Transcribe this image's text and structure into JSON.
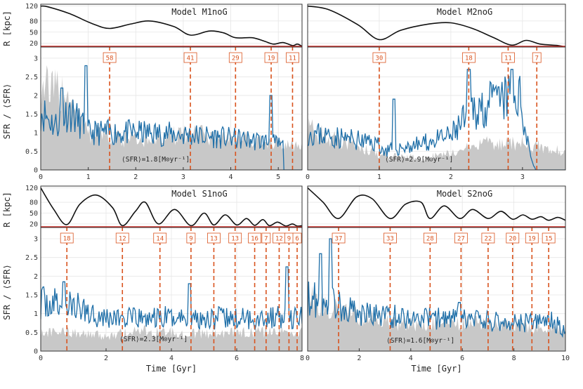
{
  "chart_data": [
    {
      "type": "line",
      "title": "Model M1noG",
      "xlabel": "",
      "ylabel_top": "R [kpc]",
      "ylabel_bottom": "SFR / ⟨SFR⟩",
      "xlim": [
        0,
        5.5
      ],
      "xticks": [
        "0",
        "1",
        "2",
        "3",
        "4",
        "5"
      ],
      "ylim_top": [
        10,
        125
      ],
      "yticks_top": [
        "120",
        "80",
        "50",
        "20"
      ],
      "ylim_bottom": [
        0,
        3.3
      ],
      "yticks_bottom": [
        "0",
        "0.5",
        "1",
        "1.5",
        "2",
        "2.5",
        "3"
      ],
      "red_line_R": 12,
      "avg_text": "⟨SFR⟩=1.8[M⊙yr⁻¹]",
      "orbit": {
        "x": [
          0,
          0.15,
          0.6,
          1.1,
          1.45,
          1.9,
          2.3,
          2.8,
          3.15,
          3.55,
          3.85,
          4.1,
          4.45,
          4.7,
          4.9,
          5.1,
          5.3,
          5.4,
          5.5
        ],
        "R": [
          120,
          118,
          100,
          72,
          60,
          72,
          80,
          65,
          42,
          53,
          48,
          35,
          35,
          26,
          18,
          22,
          14,
          18,
          12
        ]
      },
      "pericenters": [
        {
          "x": 1.45,
          "label": "58"
        },
        {
          "x": 3.15,
          "label": "41"
        },
        {
          "x": 4.1,
          "label": "29"
        },
        {
          "x": 4.85,
          "label": "19"
        },
        {
          "x": 5.3,
          "label": "11"
        }
      ],
      "sfr_seed": 11,
      "sfr_shape": [
        [
          0,
          1.6
        ],
        [
          0.3,
          1.2
        ],
        [
          0.6,
          1.6
        ],
        [
          1.0,
          1.0
        ],
        [
          2.0,
          1.0
        ],
        [
          3.0,
          0.95
        ],
        [
          4.0,
          0.85
        ],
        [
          4.8,
          0.75
        ],
        [
          5.5,
          0.5
        ]
      ],
      "sfr_spikes": [
        [
          0.45,
          2.2
        ],
        [
          0.95,
          2.8
        ],
        [
          4.85,
          2.0
        ]
      ],
      "sfr_cutoff": 5.1,
      "gray_shape": [
        [
          0,
          2.3
        ],
        [
          0.5,
          2.0
        ],
        [
          1.0,
          1.0
        ],
        [
          2.0,
          0.8
        ],
        [
          3.0,
          0.95
        ],
        [
          4.0,
          0.9
        ],
        [
          5.0,
          0.7
        ],
        [
          5.5,
          0.6
        ]
      ]
    },
    {
      "type": "line",
      "title": "Model M2noG",
      "xlabel": "",
      "xlim": [
        0,
        3.6
      ],
      "xticks": [
        "0",
        "1",
        "2",
        "3"
      ],
      "ylim_top": [
        10,
        125
      ],
      "ylim_bottom": [
        0,
        3.3
      ],
      "red_line_R": 12,
      "avg_text": "⟨SFR⟩=2.9[M⊙yr⁻¹]",
      "orbit": {
        "x": [
          0,
          0.3,
          0.7,
          1.0,
          1.3,
          1.7,
          2.0,
          2.3,
          2.6,
          2.85,
          3.05,
          3.25,
          3.5,
          3.6
        ],
        "R": [
          120,
          110,
          70,
          30,
          55,
          72,
          75,
          60,
          35,
          15,
          28,
          18,
          14,
          10
        ]
      },
      "pericenters": [
        {
          "x": 1.0,
          "label": "30"
        },
        {
          "x": 2.25,
          "label": "18"
        },
        {
          "x": 2.8,
          "label": "11"
        },
        {
          "x": 3.2,
          "label": "7"
        }
      ],
      "sfr_seed": 23,
      "sfr_shape": [
        [
          0,
          1.0
        ],
        [
          1.0,
          0.7
        ],
        [
          1.05,
          0.5
        ],
        [
          1.6,
          0.7
        ],
        [
          2.0,
          0.9
        ],
        [
          2.3,
          1.6
        ],
        [
          2.6,
          1.8
        ],
        [
          2.95,
          2.0
        ],
        [
          3.15,
          0.1
        ]
      ],
      "sfr_spikes": [
        [
          1.2,
          1.9
        ],
        [
          2.25,
          2.7
        ],
        [
          2.85,
          2.7
        ]
      ],
      "sfr_cutoff": 3.18,
      "gray_shape": [
        [
          0,
          1.1
        ],
        [
          1.0,
          0.4
        ],
        [
          1.6,
          0.3
        ],
        [
          2.0,
          0.45
        ],
        [
          2.5,
          0.7
        ],
        [
          3.0,
          0.7
        ],
        [
          3.6,
          0.5
        ]
      ]
    },
    {
      "type": "line",
      "title": "Model S1noG",
      "xlabel": "Time [Gyr]",
      "xlim": [
        0,
        8
      ],
      "xticks": [
        "0",
        "2",
        "4",
        "6",
        "8"
      ],
      "ylim_top": [
        10,
        125
      ],
      "ylim_bottom": [
        0,
        3.3
      ],
      "red_line_R": 12,
      "avg_text": "⟨SFR⟩=2.3[M⊙yr⁻¹]",
      "orbit": {
        "x": [
          0,
          0.4,
          0.8,
          1.2,
          1.7,
          2.2,
          2.5,
          2.9,
          3.2,
          3.6,
          4.1,
          4.6,
          5.0,
          5.3,
          5.65,
          6.0,
          6.3,
          6.55,
          6.8,
          7.0,
          7.25,
          7.5,
          7.7,
          7.85,
          8.0
        ],
        "R": [
          120,
          60,
          18,
          75,
          100,
          65,
          15,
          55,
          80,
          20,
          60,
          15,
          50,
          17,
          45,
          17,
          35,
          16,
          32,
          15,
          25,
          14,
          20,
          14,
          15
        ]
      },
      "pericenters": [
        {
          "x": 0.8,
          "label": "18"
        },
        {
          "x": 2.5,
          "label": "12"
        },
        {
          "x": 3.65,
          "label": "14"
        },
        {
          "x": 4.6,
          "label": "9"
        },
        {
          "x": 5.3,
          "label": "13"
        },
        {
          "x": 5.95,
          "label": "13"
        },
        {
          "x": 6.55,
          "label": "16"
        },
        {
          "x": 6.9,
          "label": "7"
        },
        {
          "x": 7.3,
          "label": "12"
        },
        {
          "x": 7.6,
          "label": "9"
        },
        {
          "x": 7.85,
          "label": "6"
        }
      ],
      "sfr_seed": 37,
      "sfr_shape": [
        [
          0,
          1.3
        ],
        [
          1.0,
          1.2
        ],
        [
          2.0,
          0.9
        ],
        [
          3.0,
          0.85
        ],
        [
          4.0,
          0.9
        ],
        [
          5.0,
          0.9
        ],
        [
          6.0,
          0.85
        ],
        [
          7.0,
          0.9
        ],
        [
          8.0,
          0.9
        ]
      ],
      "sfr_spikes": [
        [
          0.7,
          1.85
        ],
        [
          4.55,
          1.8
        ],
        [
          7.55,
          2.25
        ]
      ],
      "sfr_cutoff": 8.0,
      "gray_shape": [
        [
          0,
          0.5
        ],
        [
          1.0,
          0.5
        ],
        [
          2.0,
          0.4
        ],
        [
          3.0,
          0.55
        ],
        [
          4.0,
          0.5
        ],
        [
          5.0,
          0.45
        ],
        [
          6.0,
          0.5
        ],
        [
          7.0,
          0.5
        ],
        [
          8.0,
          0.5
        ]
      ]
    },
    {
      "type": "line",
      "title": "Model S2noG",
      "xlabel": "Time [Gyr]",
      "xlim": [
        0,
        10
      ],
      "xticks": [
        "0",
        "2",
        "4",
        "6",
        "8",
        "10"
      ],
      "ylim_top": [
        10,
        125
      ],
      "ylim_bottom": [
        0,
        3.3
      ],
      "red_line_R": 12,
      "avg_text": "⟨SFR⟩=1.6[M⊙yr⁻¹]",
      "orbit": {
        "x": [
          0,
          0.6,
          1.2,
          1.9,
          2.5,
          3.2,
          3.8,
          4.4,
          4.75,
          5.3,
          5.9,
          6.4,
          7.0,
          7.5,
          7.95,
          8.35,
          8.7,
          9.05,
          9.35,
          9.7,
          10.0
        ],
        "R": [
          120,
          80,
          35,
          95,
          90,
          35,
          75,
          80,
          35,
          70,
          35,
          60,
          35,
          55,
          33,
          45,
          33,
          40,
          30,
          38,
          30
        ]
      },
      "pericenters": [
        {
          "x": 1.2,
          "label": "37"
        },
        {
          "x": 3.2,
          "label": "33"
        },
        {
          "x": 4.75,
          "label": "28"
        },
        {
          "x": 5.95,
          "label": "27"
        },
        {
          "x": 7.0,
          "label": "22"
        },
        {
          "x": 7.95,
          "label": "20"
        },
        {
          "x": 8.7,
          "label": "19"
        },
        {
          "x": 9.35,
          "label": "15"
        }
      ],
      "sfr_seed": 53,
      "sfr_shape": [
        [
          0,
          1.4
        ],
        [
          1.0,
          1.3
        ],
        [
          2.0,
          1.0
        ],
        [
          4.0,
          0.9
        ],
        [
          6.0,
          0.85
        ],
        [
          8.0,
          0.75
        ],
        [
          9.5,
          0.8
        ],
        [
          10.0,
          0.5
        ]
      ],
      "sfr_spikes": [
        [
          0.5,
          2.6
        ],
        [
          0.9,
          3.0
        ],
        [
          5.9,
          1.3
        ]
      ],
      "sfr_cutoff": 10.0,
      "gray_shape": [
        [
          0,
          1.4
        ],
        [
          1.0,
          1.2
        ],
        [
          2.0,
          0.9
        ],
        [
          4.0,
          0.7
        ],
        [
          6.0,
          0.75
        ],
        [
          8.0,
          0.7
        ],
        [
          10.0,
          0.6
        ]
      ]
    }
  ]
}
